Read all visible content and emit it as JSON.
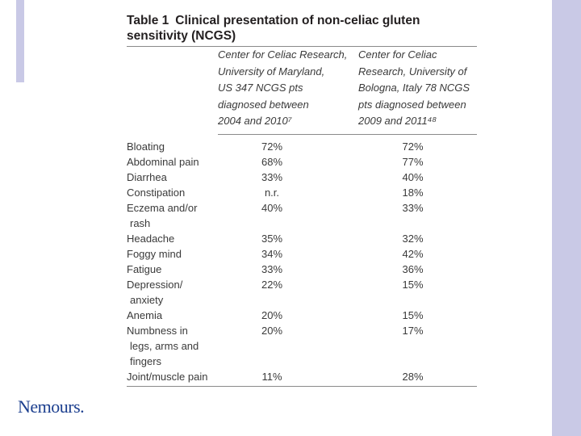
{
  "slide": {
    "accent_color": "#c9c9e6",
    "logo_text": "Nemours."
  },
  "table": {
    "label": "Table 1",
    "title": "Clinical presentation of non-celiac gluten sensitivity (NCGS)",
    "col1_header_lines": [
      "Center for Celiac Research,",
      "University of Maryland,",
      "US 347 NCGS pts",
      "diagnosed between",
      "2004 and 2010⁷"
    ],
    "col2_header_lines": [
      "Center for Celiac",
      "Research, University of",
      "Bologna, Italy 78 NCGS",
      "pts diagnosed between",
      "2009 and 2011⁴⁸"
    ],
    "rows": [
      {
        "label": "Bloating",
        "cont": "",
        "v1": "72%",
        "v2": "72%"
      },
      {
        "label": "Abdominal pain",
        "cont": "",
        "v1": "68%",
        "v2": "77%"
      },
      {
        "label": "Diarrhea",
        "cont": "",
        "v1": "33%",
        "v2": "40%"
      },
      {
        "label": "Constipation",
        "cont": "",
        "v1": "n.r.",
        "v2": "18%"
      },
      {
        "label": "Eczema and/or",
        "cont": "rash",
        "v1": "40%",
        "v2": "33%"
      },
      {
        "label": "Headache",
        "cont": "",
        "v1": "35%",
        "v2": "32%"
      },
      {
        "label": "Foggy mind",
        "cont": "",
        "v1": "34%",
        "v2": "42%"
      },
      {
        "label": "Fatigue",
        "cont": "",
        "v1": "33%",
        "v2": "36%"
      },
      {
        "label": "Depression/",
        "cont": "anxiety",
        "v1": "22%",
        "v2": "15%"
      },
      {
        "label": "Anemia",
        "cont": "",
        "v1": "20%",
        "v2": "15%"
      },
      {
        "label": "Numbness in",
        "cont": "legs, arms and fingers",
        "v1": "20%",
        "v2": "17%"
      },
      {
        "label": "Joint/muscle pain",
        "cont": "",
        "v1": "11%",
        "v2": "28%"
      }
    ]
  }
}
